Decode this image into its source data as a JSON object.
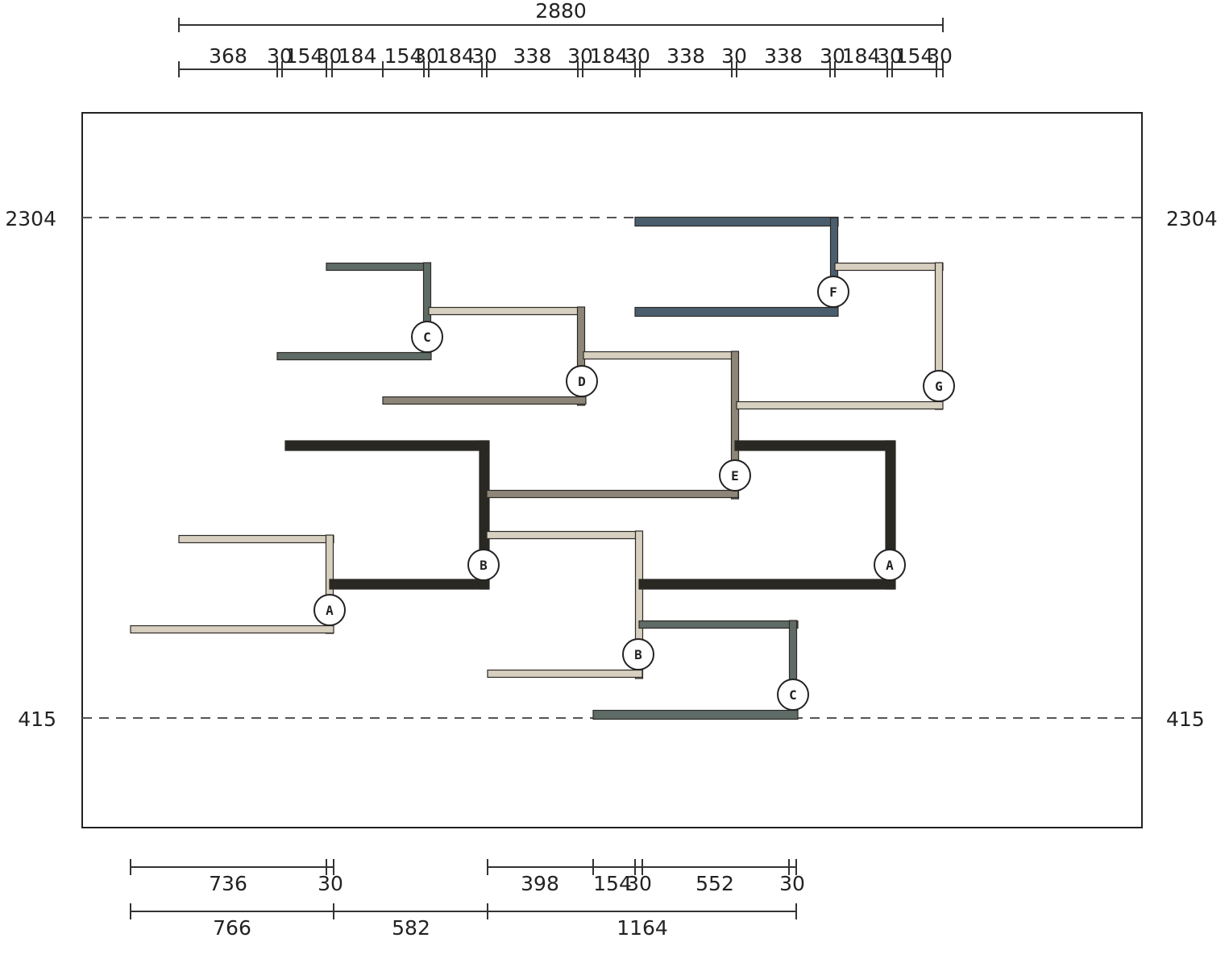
{
  "top_dimensions": {
    "overall": "2880",
    "segments": [
      "368",
      "30",
      "154",
      "30",
      "184",
      "154",
      "30",
      "184",
      "30",
      "338",
      "30",
      "184",
      "30",
      "338",
      "30",
      "338",
      "30",
      "184",
      "30",
      "154",
      "30"
    ]
  },
  "bottom_dimensions": {
    "row1": [
      "736",
      "30",
      "398",
      "154",
      "30",
      "552",
      "30"
    ],
    "row2": [
      "766",
      "582",
      "1164"
    ]
  },
  "levels": {
    "upper": "2304",
    "lower": "415"
  },
  "nodes": [
    "C",
    "D",
    "F",
    "G",
    "E",
    "B",
    "A",
    "B",
    "A",
    "C"
  ],
  "colors": {
    "sand": "#d7cfbf",
    "slate": "#5f6b66",
    "dark": "#2a2823",
    "steel": "#4b5e6d",
    "grey": "#8d8678",
    "dash": "#555555"
  }
}
